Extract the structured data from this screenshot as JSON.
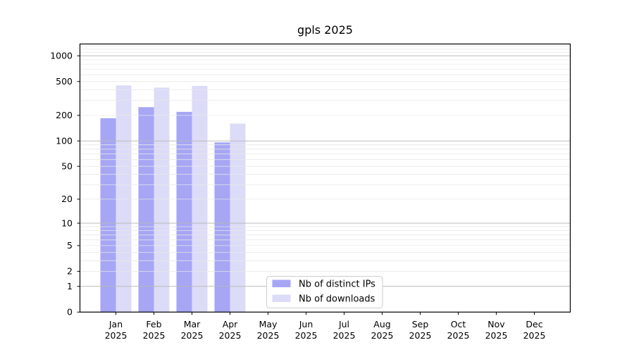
{
  "chart_data": {
    "type": "bar",
    "title": "gpls 2025",
    "categories": [
      "Jan",
      "Feb",
      "Mar",
      "Apr",
      "May",
      "Jun",
      "Jul",
      "Aug",
      "Sep",
      "Oct",
      "Nov",
      "Dec"
    ],
    "x_tick_year": "2025",
    "series": [
      {
        "name": "Nb of distinct IPs",
        "color": "#a6a6f5",
        "values": [
          185,
          250,
          220,
          96,
          null,
          null,
          null,
          null,
          null,
          null,
          null,
          null
        ]
      },
      {
        "name": "Nb of downloads",
        "color": "#dcdcf8",
        "values": [
          450,
          425,
          445,
          160,
          null,
          null,
          null,
          null,
          null,
          null,
          null,
          null
        ]
      }
    ],
    "y_ticks": [
      0,
      1,
      2,
      5,
      10,
      20,
      50,
      100,
      200,
      500,
      1000
    ],
    "y_scale": "log10(1+y)",
    "ylim": [
      0,
      1360
    ],
    "grid": "horizontal major+minor, drawn above bars",
    "legend_position": "inside lower-center",
    "colors": {
      "major_grid": "#b6b6b6",
      "minor_grid": "#e7e7e7",
      "spine": "#000000",
      "legend_border": "#cccccc",
      "background": "#ffffff"
    }
  }
}
